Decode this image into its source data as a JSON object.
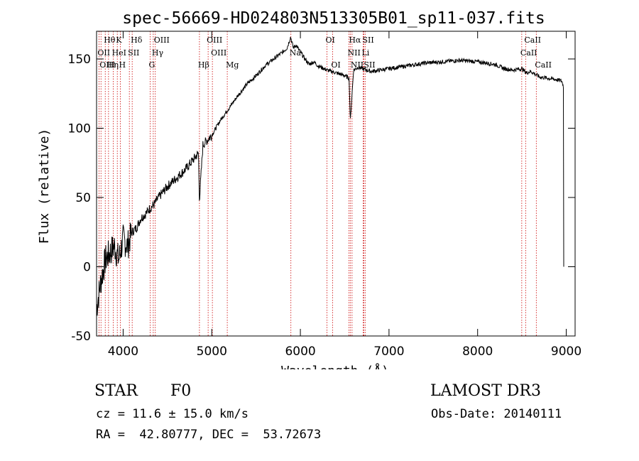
{
  "chart_data": {
    "type": "line",
    "title": "spec-56669-HD024803N513305B01_sp11-037.fits",
    "xlabel": "Wavelength (Å)",
    "ylabel": "Flux (relative)",
    "xlim": [
      3700,
      9100
    ],
    "ylim": [
      -50,
      170
    ],
    "xticks": [
      4000,
      5000,
      6000,
      7000,
      8000,
      9000
    ],
    "yticks": [
      -50,
      0,
      50,
      100,
      150
    ],
    "series": [
      {
        "name": "spectrum",
        "color": "#000000",
        "x": [
          3700,
          3750,
          3800,
          3850,
          3900,
          3950,
          4000,
          4050,
          4100,
          4150,
          4200,
          4250,
          4300,
          4350,
          4400,
          4500,
          4600,
          4700,
          4800,
          4850,
          4861,
          4900,
          5000,
          5100,
          5200,
          5300,
          5400,
          5500,
          5600,
          5700,
          5800,
          5850,
          5890,
          5920,
          5950,
          6000,
          6050,
          6100,
          6150,
          6200,
          6300,
          6400,
          6500,
          6550,
          6563,
          6600,
          6650,
          6700,
          6800,
          6900,
          7000,
          7200,
          7400,
          7600,
          7800,
          8000,
          8200,
          8300,
          8400,
          8500,
          8550,
          8600,
          8650,
          8700,
          8800,
          8900,
          8950,
          8970
        ],
        "y": [
          -30,
          -10,
          5,
          10,
          15,
          5,
          20,
          15,
          25,
          28,
          35,
          38,
          42,
          45,
          50,
          58,
          64,
          70,
          78,
          82,
          48,
          88,
          95,
          106,
          115,
          124,
          132,
          138,
          145,
          150,
          155,
          158,
          166,
          158,
          160,
          155,
          150,
          146,
          148,
          145,
          142,
          140,
          138,
          136,
          105,
          142,
          144,
          143,
          141,
          142,
          143,
          145,
          147,
          148,
          149,
          148,
          146,
          143,
          142,
          143,
          140,
          141,
          139,
          137,
          136,
          135,
          134,
          130
        ]
      }
    ],
    "lines": [
      {
        "label": "Hθ",
        "wavelength": 3798,
        "row": 0
      },
      {
        "label": "OII",
        "wavelength": 3727,
        "row": 1
      },
      {
        "label": "OIII",
        "wavelength": 3750,
        "row": 2
      },
      {
        "label": "K",
        "wavelength": 3934,
        "row": 0
      },
      {
        "label": "HeI",
        "wavelength": 3889,
        "row": 1
      },
      {
        "label": "Hη",
        "wavelength": 3835,
        "row": 2
      },
      {
        "label": "Hδ",
        "wavelength": 4102,
        "row": 0
      },
      {
        "label": "SII",
        "wavelength": 4070,
        "row": 1
      },
      {
        "label": "H",
        "wavelength": 3968,
        "row": 2
      },
      {
        "label": "OIII",
        "wavelength": 4363,
        "row": 0
      },
      {
        "label": "Hγ",
        "wavelength": 4340,
        "row": 1
      },
      {
        "label": "G",
        "wavelength": 4305,
        "row": 2
      },
      {
        "label": "OIII",
        "wavelength": 4959,
        "row": 0
      },
      {
        "label": "OIII",
        "wavelength": 5007,
        "row": 1
      },
      {
        "label": "Hβ",
        "wavelength": 4861,
        "row": 2
      },
      {
        "label": "Mg",
        "wavelength": 5175,
        "row": 2
      },
      {
        "label": "Na",
        "wavelength": 5893,
        "row": 1
      },
      {
        "label": "OI",
        "wavelength": 6300,
        "row": 0
      },
      {
        "label": "OI",
        "wavelength": 6363,
        "row": 2
      },
      {
        "label": "Hα",
        "wavelength": 6563,
        "row": 0
      },
      {
        "label": "SII",
        "wavelength": 6716,
        "row": 0
      },
      {
        "label": "NII",
        "wavelength": 6548,
        "row": 1
      },
      {
        "label": "Li",
        "wavelength": 6708,
        "row": 1
      },
      {
        "label": "NII",
        "wavelength": 6583,
        "row": 2
      },
      {
        "label": "SII",
        "wavelength": 6731,
        "row": 2
      },
      {
        "label": "CaII",
        "wavelength": 8542,
        "row": 0
      },
      {
        "label": "CaII",
        "wavelength": 8498,
        "row": 1
      },
      {
        "label": "CaII",
        "wavelength": 8662,
        "row": 2
      }
    ]
  },
  "footer": {
    "object_type": "STAR",
    "subclass": "F0",
    "survey": "LAMOST DR3",
    "velocity": "cz = 11.6 ± 15.0 km/s",
    "obs_date": "Obs-Date: 20140111",
    "coords": "RA =  42.80777, DEC =  53.72673"
  },
  "colors": {
    "spectrum": "#000000",
    "line_markers": "#cc0000",
    "axes": "#000000"
  }
}
